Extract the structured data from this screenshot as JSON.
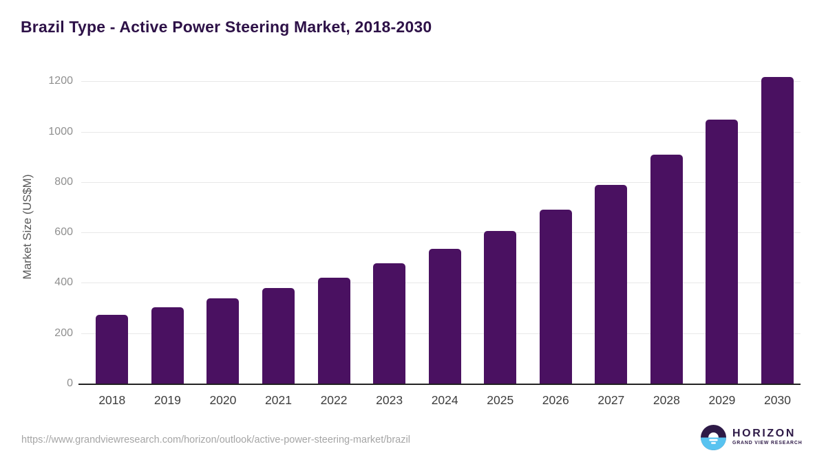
{
  "chart_data": {
    "type": "bar",
    "title": "Brazil Type - Active Power Steering Market, 2018-2030",
    "xlabel": "",
    "ylabel": "Market Size (US$M)",
    "categories": [
      "2018",
      "2019",
      "2020",
      "2021",
      "2022",
      "2023",
      "2024",
      "2025",
      "2026",
      "2027",
      "2028",
      "2029",
      "2030"
    ],
    "values": [
      276,
      307,
      340,
      381,
      424,
      480,
      538,
      609,
      693,
      791,
      911,
      1052,
      1220
    ],
    "ylim": [
      0,
      1200
    ],
    "yticks": [
      0,
      200,
      400,
      600,
      800,
      1000,
      1200
    ],
    "grid": true,
    "legend": false,
    "bar_color": "#4a1161"
  },
  "footer": {
    "source_url": "https://www.grandviewresearch.com/horizon/outlook/active-power-steering-market/brazil",
    "logo": {
      "name": "HORIZON",
      "tagline": "GRAND VIEW RESEARCH"
    }
  },
  "colors": {
    "title": "#2d1147",
    "bar": "#4a1161",
    "gridline": "#e8e8e8",
    "axis_line": "#212121",
    "logo_purple": "#2e1a47",
    "logo_blue": "#58c3f0"
  }
}
